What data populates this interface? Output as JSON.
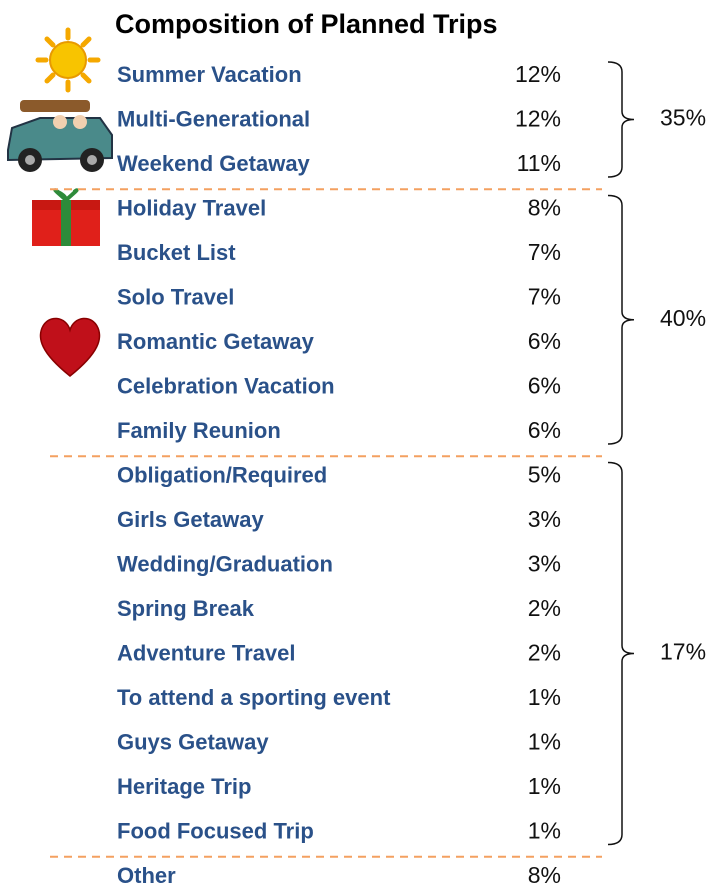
{
  "title": "Composition of Planned Trips",
  "groups": [
    {
      "total": "35%",
      "rows": [
        {
          "label": "Summer Vacation",
          "value": "12%"
        },
        {
          "label": "Multi-Generational",
          "value": "12%"
        },
        {
          "label": "Weekend Getaway",
          "value": "11%"
        }
      ]
    },
    {
      "total": "40%",
      "rows": [
        {
          "label": "Holiday Travel",
          "value": "8%"
        },
        {
          "label": "Bucket List",
          "value": "7%"
        },
        {
          "label": "Solo Travel",
          "value": "7%"
        },
        {
          "label": "Romantic Getaway",
          "value": "6%"
        },
        {
          "label": "Celebration Vacation",
          "value": "6%"
        },
        {
          "label": "Family Reunion",
          "value": "6%"
        }
      ]
    },
    {
      "total": "17%",
      "rows": [
        {
          "label": "Obligation/Required",
          "value": "5%"
        },
        {
          "label": "Girls Getaway",
          "value": "3%"
        },
        {
          "label": "Wedding/Graduation",
          "value": "3%"
        },
        {
          "label": "Spring Break",
          "value": "2%"
        },
        {
          "label": "Adventure Travel",
          "value": "2%"
        },
        {
          "label": "To attend a sporting event",
          "value": "1%"
        },
        {
          "label": "Guys Getaway",
          "value": "1%"
        },
        {
          "label": "Heritage Trip",
          "value": "1%"
        },
        {
          "label": "Food Focused Trip",
          "value": "1%"
        }
      ]
    },
    {
      "rows": [
        {
          "label": "Other",
          "value": "8%"
        }
      ]
    }
  ]
}
